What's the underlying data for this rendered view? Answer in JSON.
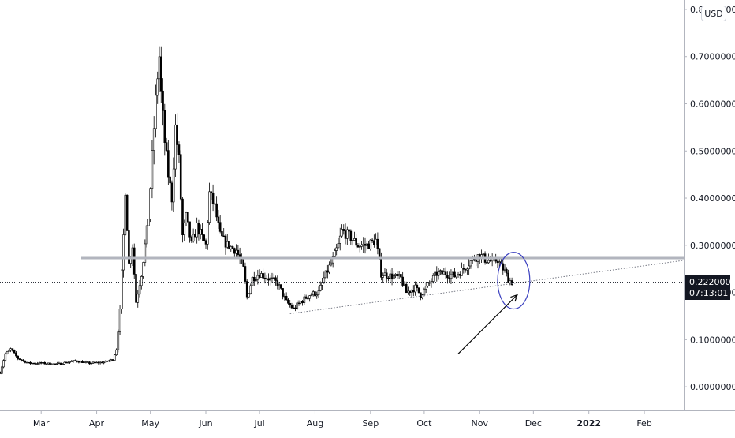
{
  "currency_label": "USD",
  "price_tag": {
    "price": "0.22200000",
    "countdown": "07:13:01"
  },
  "chart_data": {
    "type": "candlestick",
    "title": "",
    "xlabel": "",
    "ylabel": "",
    "currency": "USD",
    "ylim": [
      -0.05,
      0.82
    ],
    "y_ticks": [
      "0.00000000",
      "0.10000000",
      "0.20000000",
      "0.30000000",
      "0.40000000",
      "0.50000000",
      "0.60000000",
      "0.70000000",
      "0.80000000"
    ],
    "x_ticks": [
      {
        "label": "Mar",
        "date": "2021-03-01"
      },
      {
        "label": "Apr",
        "date": "2021-04-01"
      },
      {
        "label": "May",
        "date": "2021-05-01"
      },
      {
        "label": "Jun",
        "date": "2021-06-01"
      },
      {
        "label": "Jul",
        "date": "2021-07-01"
      },
      {
        "label": "Aug",
        "date": "2021-08-01"
      },
      {
        "label": "Sep",
        "date": "2021-09-01"
      },
      {
        "label": "Oct",
        "date": "2021-10-01"
      },
      {
        "label": "Nov",
        "date": "2021-11-01"
      },
      {
        "label": "Dec",
        "date": "2021-12-01"
      },
      {
        "label": "2022",
        "date": "2022-01-01",
        "bold": true
      },
      {
        "label": "Feb",
        "date": "2022-02-01"
      }
    ],
    "x_range": [
      "2021-02-06",
      "2022-02-23"
    ],
    "current_price": 0.222,
    "horizontal_level": 0.273,
    "price_path": [
      [
        "2021-02-06",
        0.03
      ],
      [
        "2021-02-09",
        0.07
      ],
      [
        "2021-02-12",
        0.08
      ],
      [
        "2021-02-16",
        0.06
      ],
      [
        "2021-02-22",
        0.05
      ],
      [
        "2021-03-01",
        0.05
      ],
      [
        "2021-03-10",
        0.048
      ],
      [
        "2021-03-20",
        0.055
      ],
      [
        "2021-03-28",
        0.05
      ],
      [
        "2021-04-05",
        0.052
      ],
      [
        "2021-04-10",
        0.058
      ],
      [
        "2021-04-12",
        0.08
      ],
      [
        "2021-04-14",
        0.16
      ],
      [
        "2021-04-16",
        0.32
      ],
      [
        "2021-04-17",
        0.42
      ],
      [
        "2021-04-19",
        0.26
      ],
      [
        "2021-04-21",
        0.3
      ],
      [
        "2021-04-23",
        0.18
      ],
      [
        "2021-04-26",
        0.24
      ],
      [
        "2021-04-30",
        0.36
      ],
      [
        "2021-05-03",
        0.55
      ],
      [
        "2021-05-05",
        0.66
      ],
      [
        "2021-05-06",
        0.7
      ],
      [
        "2021-05-07",
        0.62
      ],
      [
        "2021-05-09",
        0.52
      ],
      [
        "2021-05-11",
        0.45
      ],
      [
        "2021-05-13",
        0.4
      ],
      [
        "2021-05-15",
        0.55
      ],
      [
        "2021-05-17",
        0.48
      ],
      [
        "2021-05-19",
        0.32
      ],
      [
        "2021-05-21",
        0.36
      ],
      [
        "2021-05-24",
        0.3
      ],
      [
        "2021-05-27",
        0.34
      ],
      [
        "2021-06-01",
        0.3
      ],
      [
        "2021-06-03",
        0.41
      ],
      [
        "2021-06-06",
        0.38
      ],
      [
        "2021-06-09",
        0.32
      ],
      [
        "2021-06-13",
        0.3
      ],
      [
        "2021-06-18",
        0.29
      ],
      [
        "2021-06-22",
        0.25
      ],
      [
        "2021-06-24",
        0.19
      ],
      [
        "2021-06-27",
        0.23
      ],
      [
        "2021-07-01",
        0.24
      ],
      [
        "2021-07-06",
        0.23
      ],
      [
        "2021-07-11",
        0.22
      ],
      [
        "2021-07-16",
        0.18
      ],
      [
        "2021-07-20",
        0.165
      ],
      [
        "2021-07-24",
        0.18
      ],
      [
        "2021-07-29",
        0.195
      ],
      [
        "2021-08-03",
        0.2
      ],
      [
        "2021-08-06",
        0.23
      ],
      [
        "2021-08-11",
        0.27
      ],
      [
        "2021-08-14",
        0.3
      ],
      [
        "2021-08-16",
        0.33
      ],
      [
        "2021-08-20",
        0.32
      ],
      [
        "2021-08-25",
        0.3
      ],
      [
        "2021-08-30",
        0.3
      ],
      [
        "2021-09-04",
        0.31
      ],
      [
        "2021-09-07",
        0.24
      ],
      [
        "2021-09-12",
        0.235
      ],
      [
        "2021-09-18",
        0.23
      ],
      [
        "2021-09-21",
        0.2
      ],
      [
        "2021-09-26",
        0.21
      ],
      [
        "2021-09-29",
        0.195
      ],
      [
        "2021-10-04",
        0.22
      ],
      [
        "2021-10-08",
        0.24
      ],
      [
        "2021-10-13",
        0.24
      ],
      [
        "2021-10-18",
        0.235
      ],
      [
        "2021-10-23",
        0.25
      ],
      [
        "2021-10-28",
        0.27
      ],
      [
        "2021-11-01",
        0.28
      ],
      [
        "2021-11-04",
        0.27
      ],
      [
        "2021-11-08",
        0.265
      ],
      [
        "2021-11-11",
        0.27
      ],
      [
        "2021-11-13",
        0.255
      ],
      [
        "2021-11-15",
        0.245
      ],
      [
        "2021-11-17",
        0.228
      ],
      [
        "2021-11-19",
        0.222
      ]
    ],
    "annotations": [
      {
        "type": "trendline",
        "style": "dotted",
        "from": [
          "2021-07-18",
          0.155
        ],
        "to": [
          "2022-02-23",
          0.268
        ]
      },
      {
        "type": "ellipse",
        "color": "#3a3fbf",
        "center": [
          "2021-11-20",
          0.225
        ],
        "rx_days": 9,
        "ry_price": 0.06
      },
      {
        "type": "arrow",
        "color": "#000000",
        "from": [
          "2021-10-20",
          0.07
        ],
        "to": [
          "2021-11-22",
          0.195
        ]
      }
    ],
    "colors": {
      "candles": "#000000",
      "level": "#b2b5be",
      "trendline": "#787b86",
      "ellipse": "#3a3fbf",
      "arrow": "#000000",
      "price_tag": "#131722"
    }
  }
}
